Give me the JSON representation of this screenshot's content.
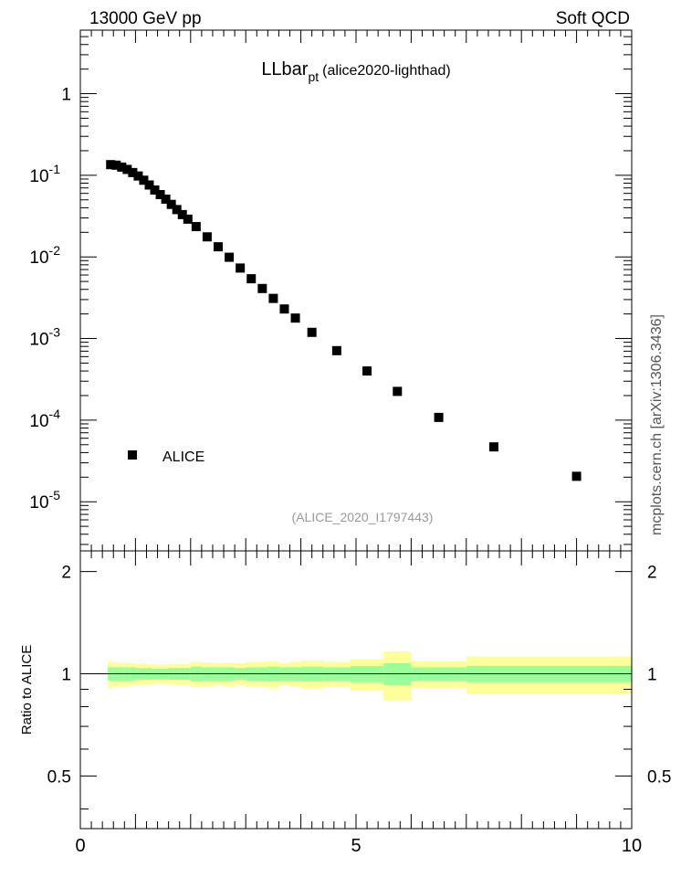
{
  "header": {
    "left": "13000 GeV pp",
    "right": "Soft QCD"
  },
  "side_label": "mcplots.cern.ch [arXiv:1306.3436]",
  "chart_data": [
    {
      "type": "scatter",
      "title_main": "LLbar",
      "title_sub": "pt",
      "title_suffix": "(alice2020-lighthad)",
      "analysis_label": "(ALICE_2020_I1797443)",
      "y_scale": "log",
      "xlim": [
        0,
        10
      ],
      "ylim": [
        2.5e-06,
        6
      ],
      "y_ticks": [
        {
          "value": 1,
          "base": "1",
          "exp": ""
        },
        {
          "value": 0.1,
          "base": "10",
          "exp": "-1"
        },
        {
          "value": 0.01,
          "base": "10",
          "exp": "-2"
        },
        {
          "value": 0.001,
          "base": "10",
          "exp": "-3"
        },
        {
          "value": 0.0001,
          "base": "10",
          "exp": "-4"
        },
        {
          "value": 1e-05,
          "base": "10",
          "exp": "-5"
        }
      ],
      "legend": {
        "position": "middle-left",
        "entries": [
          "ALICE"
        ]
      },
      "series": [
        {
          "name": "ALICE",
          "marker": "square",
          "color": "#000000",
          "x": [
            0.55,
            0.65,
            0.75,
            0.85,
            0.95,
            1.05,
            1.15,
            1.25,
            1.35,
            1.45,
            1.55,
            1.65,
            1.75,
            1.85,
            1.95,
            2.1,
            2.3,
            2.5,
            2.7,
            2.9,
            3.1,
            3.3,
            3.5,
            3.7,
            3.9,
            4.2,
            4.65,
            5.2,
            5.75,
            6.5,
            7.5,
            9.0
          ],
          "y": [
            0.135,
            0.133,
            0.126,
            0.118,
            0.108,
            0.098,
            0.087,
            0.076,
            0.066,
            0.058,
            0.051,
            0.044,
            0.038,
            0.033,
            0.029,
            0.0235,
            0.0176,
            0.0133,
            0.0099,
            0.0073,
            0.0054,
            0.0041,
            0.0031,
            0.0023,
            0.00178,
            0.00119,
            0.00071,
            0.0004,
            0.000225,
            0.000108,
            4.7e-05,
            2.05e-05
          ]
        }
      ]
    },
    {
      "type": "area",
      "ylabel": "Ratio to ALICE",
      "xlim": [
        0,
        10
      ],
      "ylim": [
        0.35,
        2.3
      ],
      "x_ticks": [
        "0",
        "5",
        "10"
      ],
      "x_tick_values": [
        0,
        5,
        10
      ],
      "y_ticks": [
        "0.5",
        "1",
        "2"
      ],
      "y_tick_values": [
        0.5,
        1,
        2
      ],
      "reference_line": 1,
      "bands": {
        "colors": {
          "outer": "#ffff99",
          "inner": "#99ff99",
          "line": "#000000"
        },
        "bins": [
          {
            "x0": 0.5,
            "x1": 0.6,
            "inner_lo": 0.955,
            "inner_hi": 1.045,
            "outer_lo": 0.91,
            "outer_hi": 1.09
          },
          {
            "x0": 0.6,
            "x1": 0.7,
            "inner_lo": 0.955,
            "inner_hi": 1.045,
            "outer_lo": 0.92,
            "outer_hi": 1.08
          },
          {
            "x0": 0.7,
            "x1": 0.8,
            "inner_lo": 0.955,
            "inner_hi": 1.045,
            "outer_lo": 0.92,
            "outer_hi": 1.08
          },
          {
            "x0": 0.8,
            "x1": 0.9,
            "inner_lo": 0.955,
            "inner_hi": 1.045,
            "outer_lo": 0.92,
            "outer_hi": 1.08
          },
          {
            "x0": 0.9,
            "x1": 1.0,
            "inner_lo": 0.955,
            "inner_hi": 1.045,
            "outer_lo": 0.925,
            "outer_hi": 1.075
          },
          {
            "x0": 1.0,
            "x1": 1.1,
            "inner_lo": 0.96,
            "inner_hi": 1.04,
            "outer_lo": 0.93,
            "outer_hi": 1.07
          },
          {
            "x0": 1.1,
            "x1": 1.2,
            "inner_lo": 0.96,
            "inner_hi": 1.04,
            "outer_lo": 0.93,
            "outer_hi": 1.07
          },
          {
            "x0": 1.2,
            "x1": 1.3,
            "inner_lo": 0.96,
            "inner_hi": 1.04,
            "outer_lo": 0.93,
            "outer_hi": 1.07
          },
          {
            "x0": 1.3,
            "x1": 1.4,
            "inner_lo": 0.965,
            "inner_hi": 1.035,
            "outer_lo": 0.935,
            "outer_hi": 1.065
          },
          {
            "x0": 1.4,
            "x1": 1.5,
            "inner_lo": 0.965,
            "inner_hi": 1.035,
            "outer_lo": 0.935,
            "outer_hi": 1.065
          },
          {
            "x0": 1.5,
            "x1": 1.6,
            "inner_lo": 0.965,
            "inner_hi": 1.035,
            "outer_lo": 0.935,
            "outer_hi": 1.065
          },
          {
            "x0": 1.6,
            "x1": 1.7,
            "inner_lo": 0.96,
            "inner_hi": 1.04,
            "outer_lo": 0.93,
            "outer_hi": 1.07
          },
          {
            "x0": 1.7,
            "x1": 1.8,
            "inner_lo": 0.96,
            "inner_hi": 1.04,
            "outer_lo": 0.93,
            "outer_hi": 1.07
          },
          {
            "x0": 1.8,
            "x1": 1.9,
            "inner_lo": 0.96,
            "inner_hi": 1.04,
            "outer_lo": 0.93,
            "outer_hi": 1.07
          },
          {
            "x0": 1.9,
            "x1": 2.0,
            "inner_lo": 0.96,
            "inner_hi": 1.04,
            "outer_lo": 0.93,
            "outer_hi": 1.07
          },
          {
            "x0": 2.0,
            "x1": 2.2,
            "inner_lo": 0.95,
            "inner_hi": 1.05,
            "outer_lo": 0.915,
            "outer_hi": 1.085
          },
          {
            "x0": 2.2,
            "x1": 2.4,
            "inner_lo": 0.955,
            "inner_hi": 1.045,
            "outer_lo": 0.92,
            "outer_hi": 1.08
          },
          {
            "x0": 2.4,
            "x1": 2.6,
            "inner_lo": 0.955,
            "inner_hi": 1.045,
            "outer_lo": 0.925,
            "outer_hi": 1.075
          },
          {
            "x0": 2.6,
            "x1": 2.8,
            "inner_lo": 0.955,
            "inner_hi": 1.045,
            "outer_lo": 0.92,
            "outer_hi": 1.08
          },
          {
            "x0": 2.8,
            "x1": 3.0,
            "inner_lo": 0.96,
            "inner_hi": 1.04,
            "outer_lo": 0.925,
            "outer_hi": 1.075
          },
          {
            "x0": 3.0,
            "x1": 3.2,
            "inner_lo": 0.955,
            "inner_hi": 1.045,
            "outer_lo": 0.915,
            "outer_hi": 1.085
          },
          {
            "x0": 3.2,
            "x1": 3.4,
            "inner_lo": 0.955,
            "inner_hi": 1.045,
            "outer_lo": 0.915,
            "outer_hi": 1.085
          },
          {
            "x0": 3.4,
            "x1": 3.6,
            "inner_lo": 0.95,
            "inner_hi": 1.05,
            "outer_lo": 0.91,
            "outer_hi": 1.09
          },
          {
            "x0": 3.6,
            "x1": 3.8,
            "inner_lo": 0.955,
            "inner_hi": 1.045,
            "outer_lo": 0.925,
            "outer_hi": 1.075
          },
          {
            "x0": 3.8,
            "x1": 4.0,
            "inner_lo": 0.955,
            "inner_hi": 1.045,
            "outer_lo": 0.915,
            "outer_hi": 1.085
          },
          {
            "x0": 4.0,
            "x1": 4.4,
            "inner_lo": 0.95,
            "inner_hi": 1.05,
            "outer_lo": 0.905,
            "outer_hi": 1.095
          },
          {
            "x0": 4.4,
            "x1": 4.9,
            "inner_lo": 0.955,
            "inner_hi": 1.045,
            "outer_lo": 0.915,
            "outer_hi": 1.085
          },
          {
            "x0": 4.9,
            "x1": 5.5,
            "inner_lo": 0.945,
            "inner_hi": 1.055,
            "outer_lo": 0.895,
            "outer_hi": 1.105
          },
          {
            "x0": 5.5,
            "x1": 6.0,
            "inner_lo": 0.925,
            "inner_hi": 1.075,
            "outer_lo": 0.835,
            "outer_hi": 1.165
          },
          {
            "x0": 6.0,
            "x1": 7.0,
            "inner_lo": 0.955,
            "inner_hi": 1.045,
            "outer_lo": 0.91,
            "outer_hi": 1.09
          },
          {
            "x0": 7.0,
            "x1": 10.0,
            "inner_lo": 0.945,
            "inner_hi": 1.055,
            "outer_lo": 0.875,
            "outer_hi": 1.125
          }
        ]
      }
    }
  ]
}
